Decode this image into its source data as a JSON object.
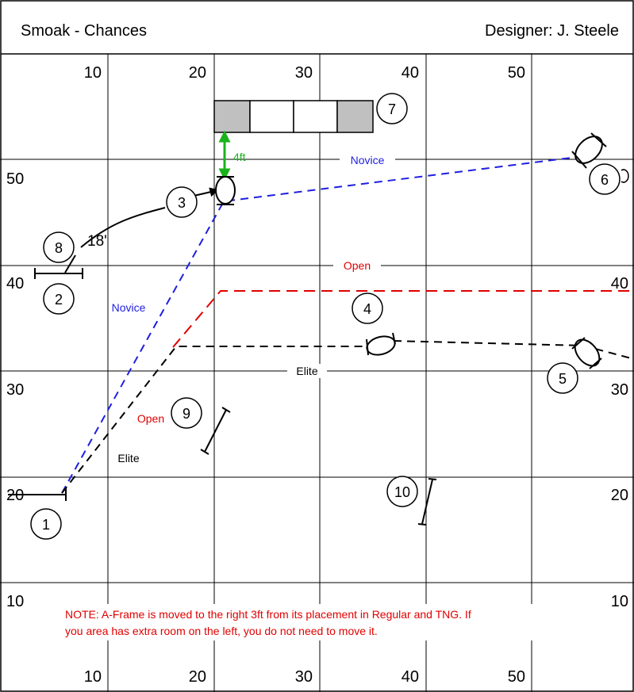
{
  "header": {
    "title": "Smoak - Chances",
    "designer": "Designer: J. Steele"
  },
  "axis": {
    "top": [
      "10",
      "20",
      "30",
      "40",
      "50"
    ],
    "bottom": [
      "10",
      "20",
      "30",
      "40",
      "50"
    ],
    "left": [
      "50",
      "40",
      "30",
      "20",
      "10"
    ],
    "right": [
      "40",
      "30",
      "20",
      "10"
    ]
  },
  "obstacles": {
    "aframe": "7",
    "jump3": "3",
    "jump6": "6",
    "jump8": "8",
    "jump2": "2",
    "jump4": "4",
    "jump5": "5",
    "jump9": "9",
    "jump10": "10",
    "start1": "1"
  },
  "measurements": {
    "gap": "4ft",
    "distance": "18'"
  },
  "paths": {
    "novice_top": "Novice",
    "novice_left": "Novice",
    "open_top": "Open",
    "open_left": "Open",
    "elite_mid": "Elite",
    "elite_left": "Elite"
  },
  "colors": {
    "novice": "#1f1fe0",
    "open": "#e00000",
    "elite": "#000000",
    "measure": "#1bb31b",
    "aframe_fill": "#c0c0c0"
  },
  "note": {
    "line1": "NOTE: A-Frame is moved to the right 3ft from its placement in Regular and TNG. If",
    "line2": "you area has extra room on the left, you do not need to move it."
  }
}
